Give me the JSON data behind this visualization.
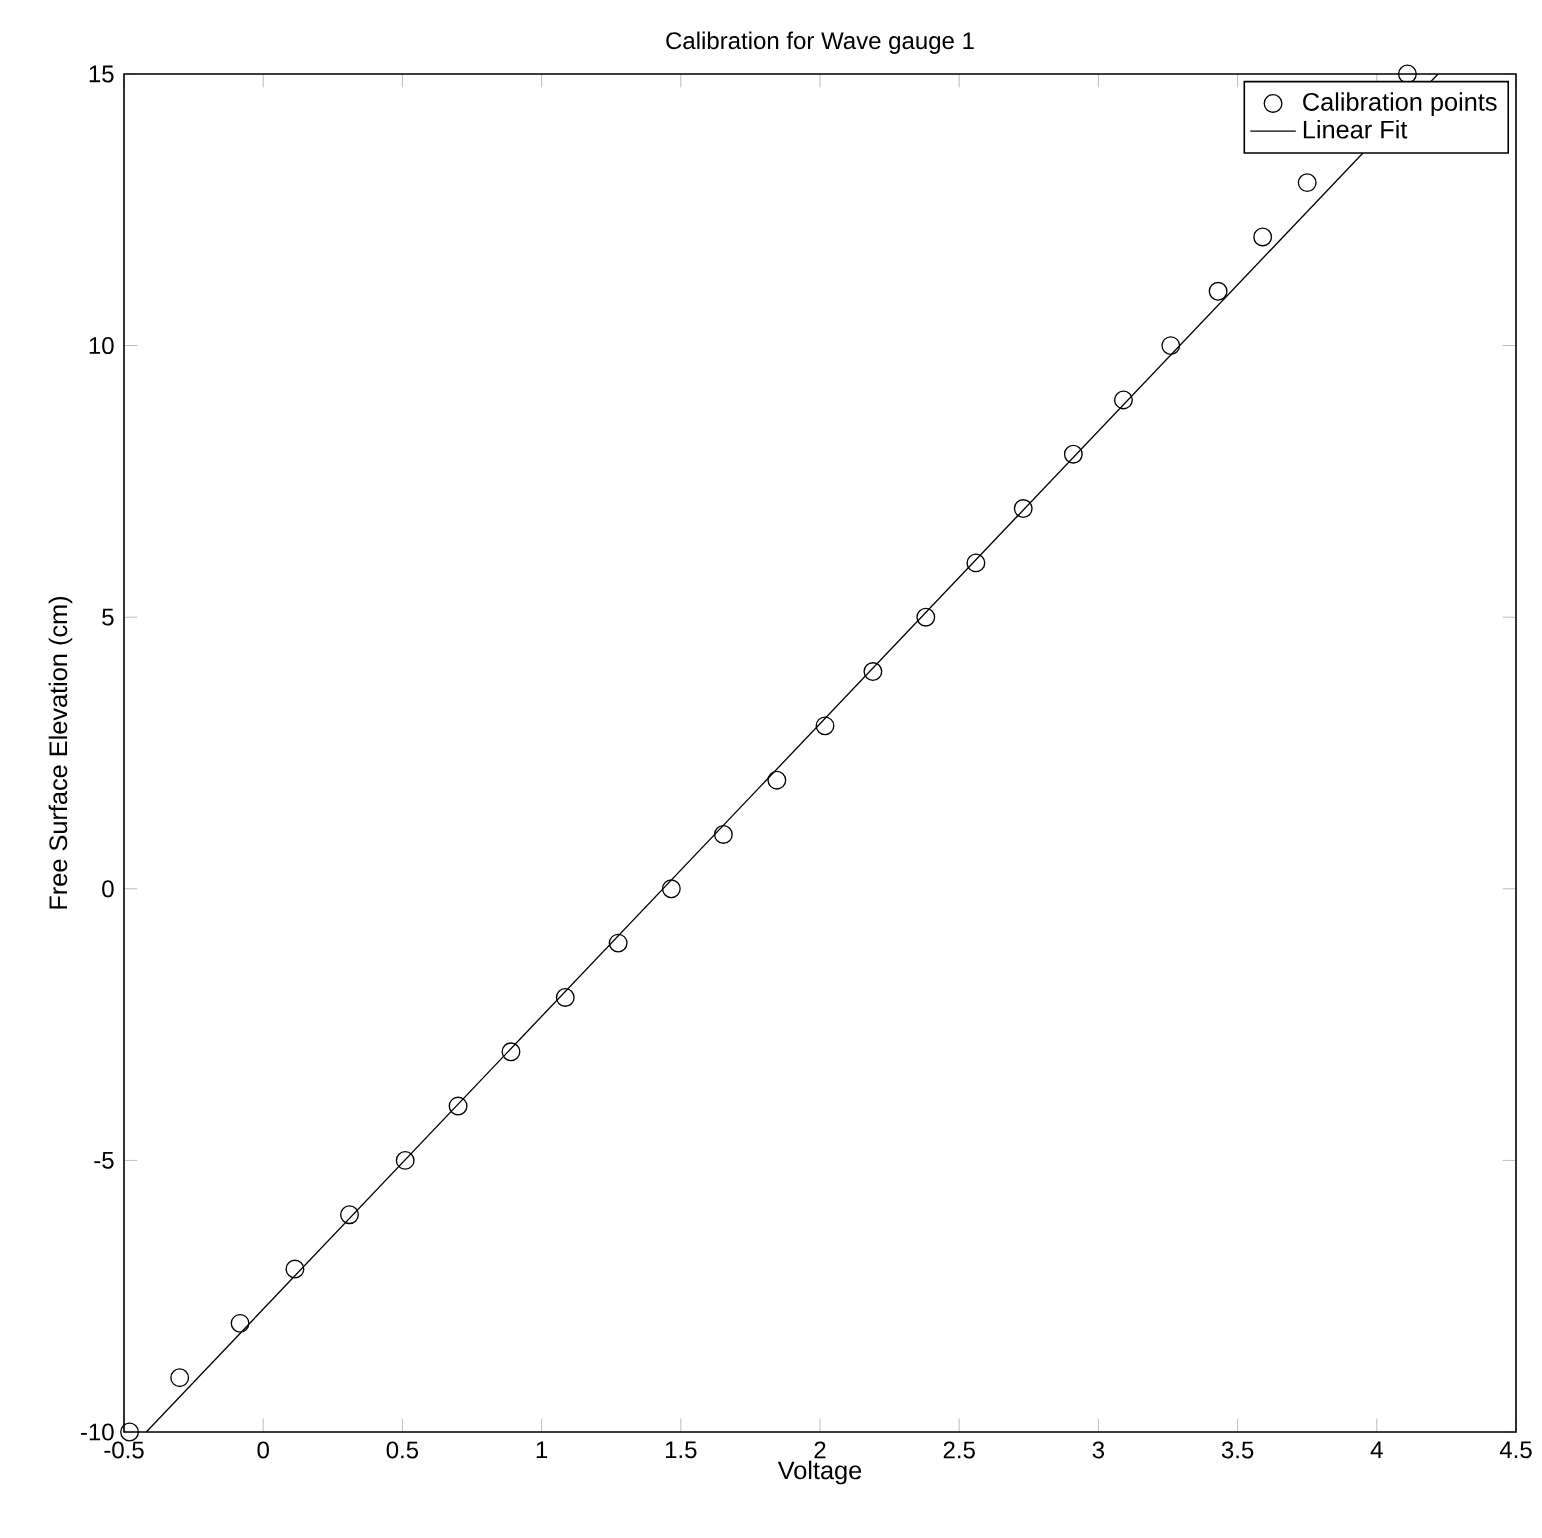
{
  "chart_data": {
    "type": "scatter",
    "title": "Calibration for Wave gauge 1",
    "xlabel": "Voltage",
    "ylabel": "Free Surface Elevation (cm)",
    "series": [
      {
        "name": "Calibration points",
        "color": "#000000",
        "marker": "circle",
        "x": [
          -0.48,
          -0.3,
          -0.083,
          0.114,
          0.31,
          0.51,
          0.7,
          0.89,
          1.085,
          1.275,
          1.466,
          1.653,
          1.845,
          2.018,
          2.19,
          2.38,
          2.56,
          2.73,
          2.91,
          3.09,
          3.26,
          3.43,
          3.59,
          3.75,
          null,
          4.11
        ],
        "values": [
          -10,
          -9,
          -8,
          -7,
          -6,
          -5,
          -4,
          -3,
          -2,
          -1,
          0,
          1,
          2,
          3,
          4,
          5,
          6,
          7,
          8,
          9,
          10,
          11,
          12,
          13,
          null,
          15
        ]
      },
      {
        "name": "Linear Fit",
        "type": "line",
        "color": "#000000",
        "marker": "none",
        "line_style": "solid",
        "x": [
          -0.42,
          4.22
        ],
        "values": [
          -10,
          15
        ]
      }
    ],
    "xlim": [
      -0.5,
      4.5
    ],
    "ylim": [
      -10,
      15
    ],
    "xticks": [
      -0.5,
      0,
      0.5,
      1,
      1.5,
      2,
      2.5,
      3,
      3.5,
      4,
      4.5
    ],
    "yticks": [
      -10,
      -5,
      0,
      5,
      10,
      15
    ],
    "grid": false,
    "legend": "top right"
  }
}
